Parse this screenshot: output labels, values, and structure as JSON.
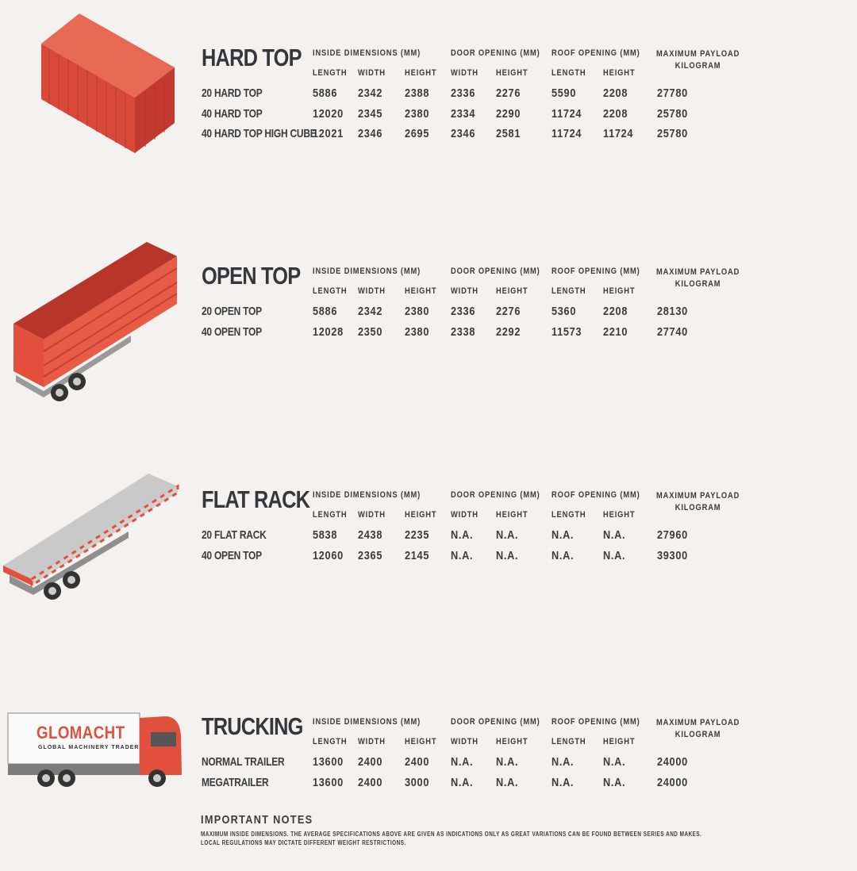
{
  "column_groups": {
    "inside": "INSIDE DIMENSIONS (MM)",
    "door": "DOOR OPENING (MM)",
    "roof": "ROOF OPENING (MM)",
    "payload_line1": "MAXIMUM PAYLOAD",
    "payload_line2": "KILOGRAM"
  },
  "sub_headers": [
    "LENGTH",
    "WIDTH",
    "HEIGHT",
    "WIDTH",
    "HEIGHT",
    "LENGTH",
    "HEIGHT"
  ],
  "sections": [
    {
      "title": "HARD TOP",
      "icon": "shipping-container-icon",
      "rows": [
        {
          "label": "20 HARD TOP",
          "values": [
            "5886",
            "2342",
            "2388",
            "2336",
            "2276",
            "5590",
            "2208",
            "27780"
          ]
        },
        {
          "label": "40 HARD TOP",
          "values": [
            "12020",
            "2345",
            "2380",
            "2334",
            "2290",
            "11724",
            "2208",
            "25780"
          ]
        },
        {
          "label": "40 HARD TOP HIGH CUBE",
          "values": [
            "12021",
            "2346",
            "2695",
            "2346",
            "2581",
            "11724",
            "11724",
            "25780"
          ]
        }
      ]
    },
    {
      "title": "OPEN TOP",
      "icon": "open-top-trailer-icon",
      "rows": [
        {
          "label": "20 OPEN TOP",
          "values": [
            "5886",
            "2342",
            "2380",
            "2336",
            "2276",
            "5360",
            "2208",
            "28130"
          ]
        },
        {
          "label": "40 OPEN TOP",
          "values": [
            "12028",
            "2350",
            "2380",
            "2338",
            "2292",
            "11573",
            "2210",
            "27740"
          ]
        }
      ]
    },
    {
      "title": "FLAT RACK",
      "icon": "flat-rack-trailer-icon",
      "rows": [
        {
          "label": "20 FLAT RACK",
          "values": [
            "5838",
            "2438",
            "2235",
            "N.A.",
            "N.A.",
            "N.A.",
            "N.A.",
            "27960"
          ]
        },
        {
          "label": "40 OPEN TOP",
          "values": [
            "12060",
            "2365",
            "2145",
            "N.A.",
            "N.A.",
            "N.A.",
            "N.A.",
            "39300"
          ]
        }
      ]
    },
    {
      "title": "TRUCKING",
      "icon": "truck-icon",
      "rows": [
        {
          "label": "NORMAL TRAILER",
          "values": [
            "13600",
            "2400",
            "2400",
            "N.A.",
            "N.A.",
            "N.A.",
            "N.A.",
            "24000"
          ]
        },
        {
          "label": "MEGATRAILER",
          "values": [
            "13600",
            "2400",
            "3000",
            "N.A.",
            "N.A.",
            "N.A.",
            "N.A.",
            "24000"
          ]
        }
      ]
    }
  ],
  "truck_logo": {
    "brand": "GLOMACHT",
    "tagline": "GLOBAL MACHINERY TRADER"
  },
  "notes": {
    "title": "IMPORTANT NOTES",
    "line1": "MAXIMUM INSIDE DIMENSIONS. THE AVERAGE SPECIFICATIONS ABOVE ARE GIVEN AS INDICATIONS ONLY AS GREAT VARIATIONS CAN BE FOUND BETWEEN SERIES AND MAKES.",
    "line2": "LOCAL REGULATIONS MAY DICTATE DIFFERENT WEIGHT RESTRICTIONS."
  },
  "colors": {
    "text": "#3a3b3d",
    "container_red": "#e0503c",
    "background": "#f3f2f0"
  }
}
